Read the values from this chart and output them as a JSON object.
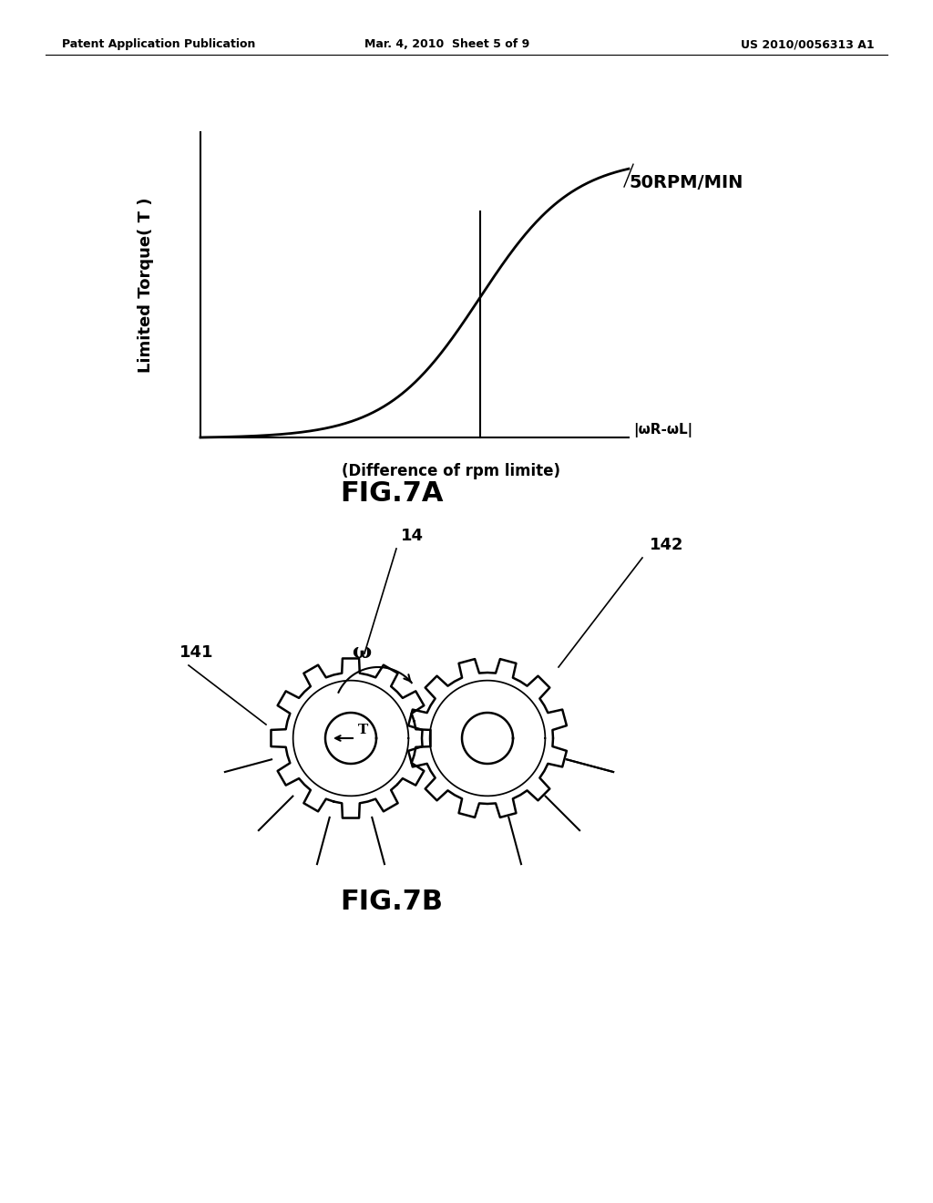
{
  "bg_color": "#ffffff",
  "header_left": "Patent Application Publication",
  "header_mid": "Mar. 4, 2010  Sheet 5 of 9",
  "header_right": "US 2010/0056313 A1",
  "fig7a_label": "FIG.7A",
  "fig7b_label": "FIG.7B",
  "graph_ylabel": "Limited Torque( T )",
  "graph_xlabel_line1": "|ωR-ωL|",
  "graph_xlabel_line2": "(Difference of rpm limite)",
  "graph_annotation": "50RPM/MIN",
  "label_14": "14",
  "label_141": "141",
  "label_142": "142",
  "label_omega": "ω",
  "label_T": "T"
}
